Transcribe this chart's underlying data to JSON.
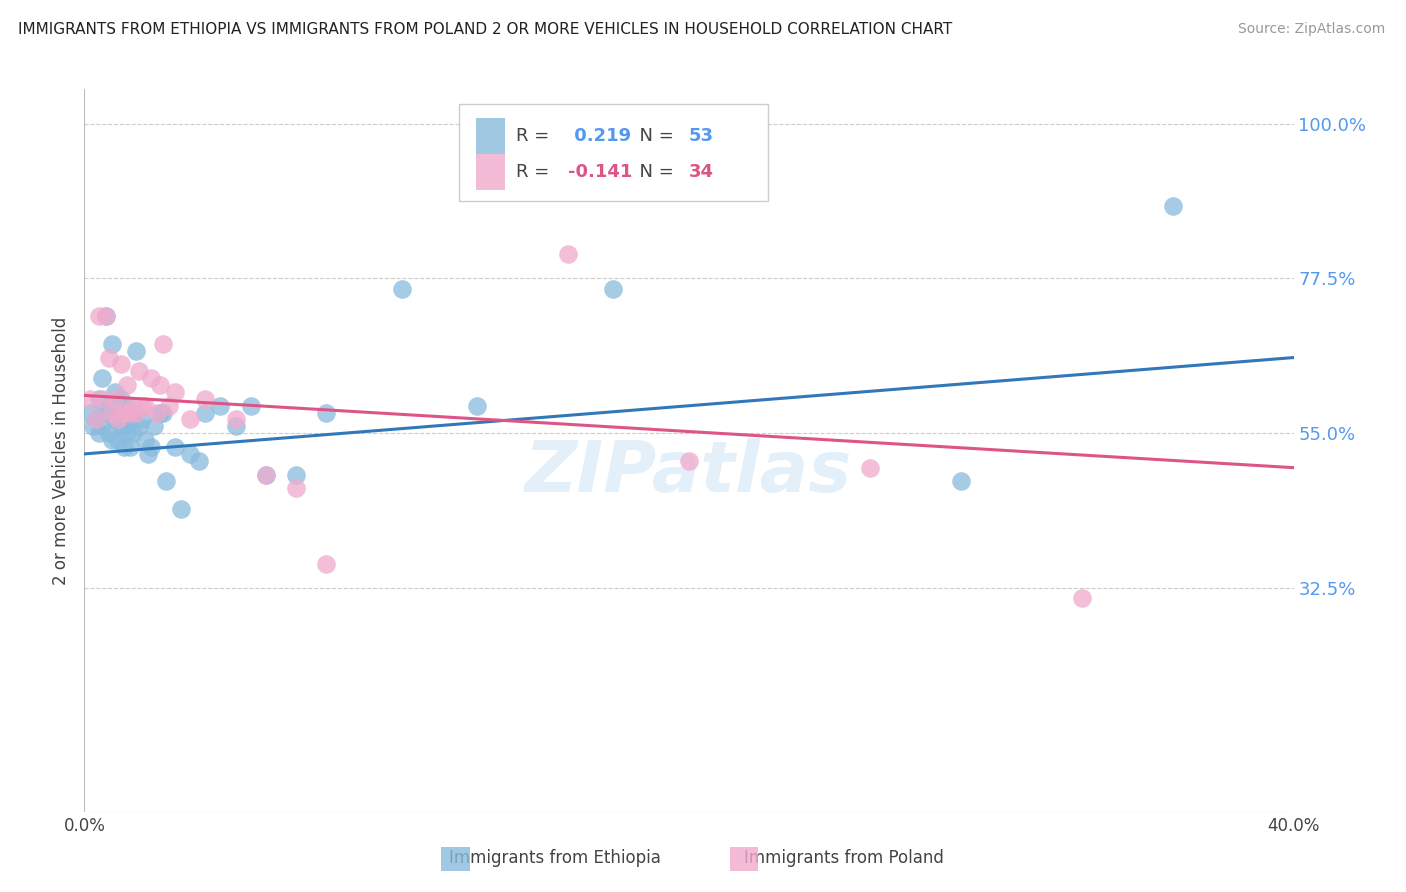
{
  "title": "IMMIGRANTS FROM ETHIOPIA VS IMMIGRANTS FROM POLAND 2 OR MORE VEHICLES IN HOUSEHOLD CORRELATION CHART",
  "source": "Source: ZipAtlas.com",
  "ylabel": "2 or more Vehicles in Household",
  "xlim": [
    0.0,
    0.4
  ],
  "ylim": [
    0.0,
    1.05
  ],
  "yticks": [
    0.325,
    0.55,
    0.775,
    1.0
  ],
  "ytick_labels": [
    "32.5%",
    "55.0%",
    "77.5%",
    "100.0%"
  ],
  "xticks": [
    0.0,
    0.1,
    0.2,
    0.3,
    0.4
  ],
  "xtick_labels": [
    "0.0%",
    "",
    "",
    "",
    "40.0%"
  ],
  "ethiopia_color": "#88bbdd",
  "poland_color": "#f0aacc",
  "ethiopia_R": 0.219,
  "ethiopia_N": 53,
  "poland_R": -0.141,
  "poland_N": 34,
  "line_ethiopia_color": "#3377bb",
  "line_poland_color": "#dd5588",
  "background_color": "#ffffff",
  "grid_color": "#cccccc",
  "eth_line_x0": 0.0,
  "eth_line_y0": 0.52,
  "eth_line_x1": 0.4,
  "eth_line_y1": 0.66,
  "pol_line_x0": 0.0,
  "pol_line_y0": 0.605,
  "pol_line_x1": 0.4,
  "pol_line_y1": 0.5,
  "ethiopia_x": [
    0.002,
    0.003,
    0.004,
    0.005,
    0.005,
    0.006,
    0.006,
    0.007,
    0.007,
    0.008,
    0.008,
    0.009,
    0.009,
    0.01,
    0.01,
    0.011,
    0.011,
    0.012,
    0.012,
    0.013,
    0.013,
    0.014,
    0.014,
    0.015,
    0.015,
    0.016,
    0.016,
    0.017,
    0.018,
    0.019,
    0.02,
    0.021,
    0.022,
    0.023,
    0.025,
    0.026,
    0.027,
    0.03,
    0.032,
    0.035,
    0.038,
    0.04,
    0.045,
    0.05,
    0.055,
    0.06,
    0.07,
    0.08,
    0.105,
    0.13,
    0.175,
    0.29,
    0.36
  ],
  "ethiopia_y": [
    0.58,
    0.56,
    0.57,
    0.6,
    0.55,
    0.63,
    0.56,
    0.72,
    0.58,
    0.55,
    0.59,
    0.68,
    0.54,
    0.57,
    0.61,
    0.57,
    0.54,
    0.56,
    0.6,
    0.56,
    0.53,
    0.59,
    0.55,
    0.57,
    0.53,
    0.58,
    0.55,
    0.67,
    0.56,
    0.57,
    0.54,
    0.52,
    0.53,
    0.56,
    0.58,
    0.58,
    0.48,
    0.53,
    0.44,
    0.52,
    0.51,
    0.58,
    0.59,
    0.56,
    0.59,
    0.49,
    0.49,
    0.58,
    0.76,
    0.59,
    0.76,
    0.48,
    0.88
  ],
  "poland_x": [
    0.002,
    0.004,
    0.005,
    0.006,
    0.007,
    0.008,
    0.009,
    0.01,
    0.011,
    0.012,
    0.013,
    0.014,
    0.015,
    0.016,
    0.017,
    0.018,
    0.019,
    0.02,
    0.022,
    0.024,
    0.025,
    0.026,
    0.028,
    0.03,
    0.035,
    0.04,
    0.05,
    0.06,
    0.07,
    0.08,
    0.16,
    0.2,
    0.26,
    0.33
  ],
  "poland_y": [
    0.6,
    0.57,
    0.72,
    0.6,
    0.72,
    0.66,
    0.58,
    0.6,
    0.57,
    0.65,
    0.58,
    0.62,
    0.58,
    0.59,
    0.58,
    0.64,
    0.59,
    0.59,
    0.63,
    0.58,
    0.62,
    0.68,
    0.59,
    0.61,
    0.57,
    0.6,
    0.57,
    0.49,
    0.47,
    0.36,
    0.81,
    0.51,
    0.5,
    0.31
  ]
}
